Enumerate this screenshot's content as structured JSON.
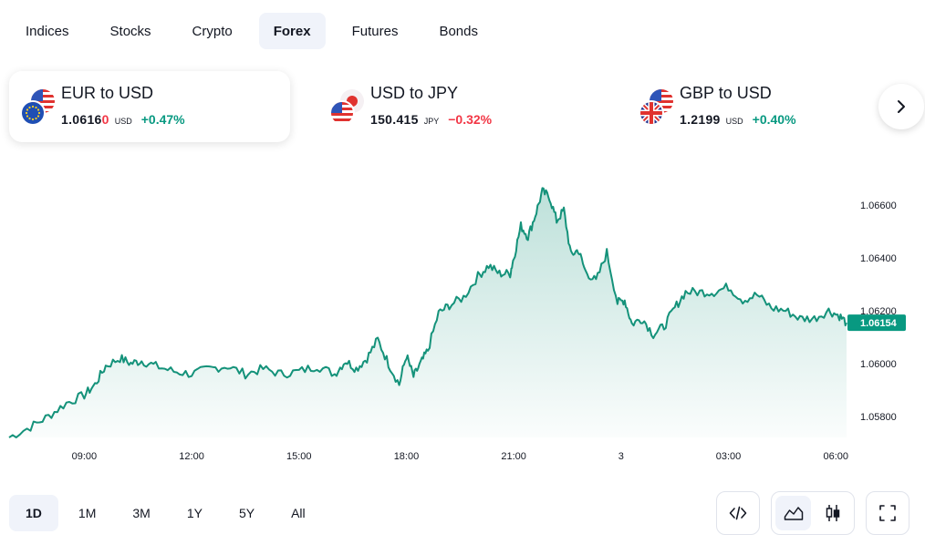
{
  "tabs": [
    {
      "label": "Indices"
    },
    {
      "label": "Stocks"
    },
    {
      "label": "Crypto"
    },
    {
      "label": "Forex",
      "active": true
    },
    {
      "label": "Futures"
    },
    {
      "label": "Bonds"
    }
  ],
  "cards": [
    {
      "title": "EUR to USD",
      "price": "1.0616",
      "price_last": "0",
      "currency": "USD",
      "change": "+0.47%",
      "direction": "up",
      "flags": [
        "us-flag-icon",
        "eu-flag-icon"
      ]
    },
    {
      "title": "USD to JPY",
      "price": "150.415",
      "price_last": "",
      "currency": "JPY",
      "change": "−0.32%",
      "direction": "down",
      "flags": [
        "jp-flag-icon",
        "us-flag-icon"
      ]
    },
    {
      "title": "GBP to USD",
      "price": "1.2199",
      "price_last": "",
      "currency": "USD",
      "change": "+0.40%",
      "direction": "up",
      "flags": [
        "us-flag-icon",
        "uk-flag-icon"
      ]
    }
  ],
  "colors": {
    "up": "#089981",
    "down": "#f23645",
    "line": "#14927a",
    "active_bg": "#f0f3fa"
  },
  "chart_data": {
    "type": "area",
    "title": "EUR to USD",
    "current_value": "1.06154",
    "ylim": [
      1.0572,
      1.0672
    ],
    "y_ticks": [
      "1.06600",
      "1.06400",
      "1.06200",
      "1.06000",
      "1.05800"
    ],
    "y_tick_values": [
      1.066,
      1.064,
      1.062,
      1.06,
      1.058
    ],
    "x_ticks": [
      "09:00",
      "12:00",
      "15:00",
      "18:00",
      "21:00",
      "3",
      "03:00",
      "06:00"
    ],
    "x_tick_hours": [
      9,
      12,
      15,
      18,
      21,
      24,
      27,
      30
    ],
    "x_range_hours": [
      6.9,
      30.3
    ],
    "series": [
      {
        "name": "EUR/USD",
        "x": [
          6.9,
          7.5,
          8.0,
          8.5,
          9.0,
          9.3,
          9.6,
          10.0,
          10.3,
          10.6,
          11.0,
          11.5,
          12.0,
          12.5,
          13.0,
          13.5,
          14.0,
          14.5,
          15.0,
          15.5,
          16.0,
          16.3,
          16.6,
          16.9,
          17.2,
          17.5,
          17.8,
          18.0,
          18.2,
          18.4,
          18.6,
          18.9,
          19.2,
          19.6,
          20.0,
          20.3,
          20.6,
          20.9,
          21.0,
          21.2,
          21.4,
          21.6,
          21.8,
          22.0,
          22.2,
          22.4,
          22.6,
          22.8,
          23.0,
          23.3,
          23.6,
          23.9,
          24.1,
          24.3,
          24.6,
          24.9,
          25.2,
          25.5,
          25.8,
          26.2,
          26.6,
          27.0,
          27.4,
          27.8,
          28.2,
          28.6,
          29.0,
          29.4,
          29.8,
          30.1,
          30.3
        ],
        "values": [
          1.0572,
          1.0576,
          1.058,
          1.0585,
          1.0588,
          1.0592,
          1.0599,
          1.0602,
          1.06,
          1.0601,
          1.0599,
          1.0597,
          1.0596,
          1.0598,
          1.0599,
          1.0596,
          1.0598,
          1.0596,
          1.0597,
          1.0599,
          1.0596,
          1.0601,
          1.0598,
          1.0602,
          1.0609,
          1.06,
          1.0592,
          1.0603,
          1.0595,
          1.06,
          1.0605,
          1.0619,
          1.0622,
          1.0625,
          1.0633,
          1.0637,
          1.0634,
          1.0634,
          1.064,
          1.0652,
          1.0648,
          1.0656,
          1.0665,
          1.0663,
          1.0654,
          1.0658,
          1.0641,
          1.0643,
          1.0635,
          1.0631,
          1.0642,
          1.0623,
          1.0624,
          1.0615,
          1.0617,
          1.0611,
          1.0614,
          1.0621,
          1.0627,
          1.0627,
          1.0627,
          1.0629,
          1.0624,
          1.0626,
          1.0621,
          1.062,
          1.0617,
          1.0617,
          1.062,
          1.0618,
          1.06154
        ]
      }
    ]
  },
  "ranges": [
    {
      "label": "1D",
      "active": true
    },
    {
      "label": "1M"
    },
    {
      "label": "3M"
    },
    {
      "label": "1Y"
    },
    {
      "label": "5Y"
    },
    {
      "label": "All"
    }
  ]
}
